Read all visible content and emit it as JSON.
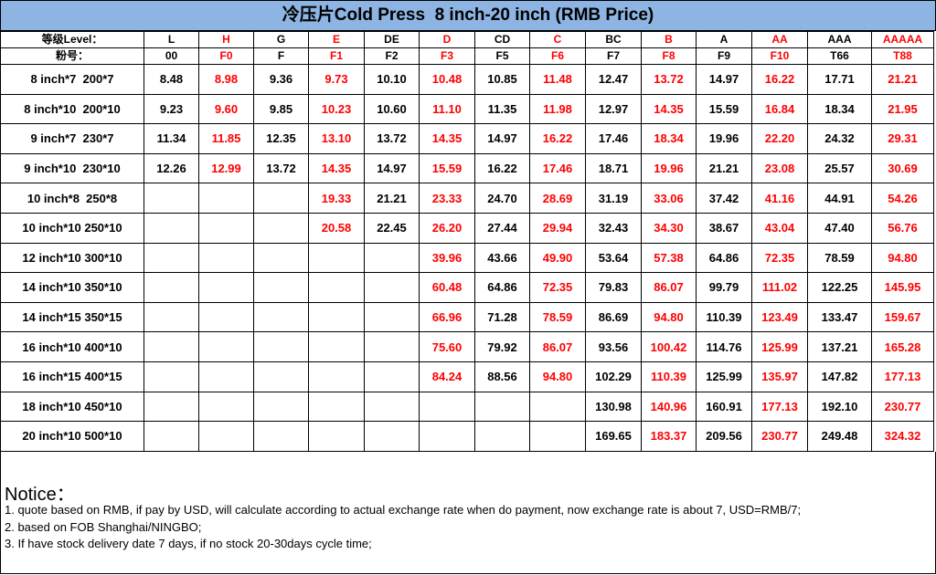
{
  "title": "冷压片Cold Press  8 inch-20 inch (RMB Price)",
  "table": {
    "level_label": "等级Level：",
    "levels": [
      "L",
      "H",
      "G",
      "E",
      "DE",
      "D",
      "CD",
      "C",
      "BC",
      "B",
      "A",
      "AA",
      "AAA",
      "AAAAA"
    ],
    "powder_label": "粉号：",
    "powders": [
      "00",
      "F0",
      "F",
      "F1",
      "F2",
      "F3",
      "F5",
      "F6",
      "F7",
      "F8",
      "F9",
      "F10",
      "T66",
      "T88"
    ],
    "rows": [
      {
        "size": "8 inch*7  200*7",
        "prices": [
          "8.48",
          "8.98",
          "9.36",
          "9.73",
          "10.10",
          "10.48",
          "10.85",
          "11.48",
          "12.47",
          "13.72",
          "14.97",
          "16.22",
          "17.71",
          "21.21"
        ]
      },
      {
        "size": "8 inch*10  200*10",
        "prices": [
          "9.23",
          "9.60",
          "9.85",
          "10.23",
          "10.60",
          "11.10",
          "11.35",
          "11.98",
          "12.97",
          "14.35",
          "15.59",
          "16.84",
          "18.34",
          "21.95"
        ]
      },
      {
        "size": "9 inch*7  230*7",
        "prices": [
          "11.34",
          "11.85",
          "12.35",
          "13.10",
          "13.72",
          "14.35",
          "14.97",
          "16.22",
          "17.46",
          "18.34",
          "19.96",
          "22.20",
          "24.32",
          "29.31"
        ]
      },
      {
        "size": "9 inch*10  230*10",
        "prices": [
          "12.26",
          "12.99",
          "13.72",
          "14.35",
          "14.97",
          "15.59",
          "16.22",
          "17.46",
          "18.71",
          "19.96",
          "21.21",
          "23.08",
          "25.57",
          "30.69"
        ]
      },
      {
        "size": "10 inch*8  250*8",
        "prices": [
          null,
          null,
          null,
          "19.33",
          "21.21",
          "23.33",
          "24.70",
          "28.69",
          "31.19",
          "33.06",
          "37.42",
          "41.16",
          "44.91",
          "54.26"
        ]
      },
      {
        "size": "10 inch*10 250*10",
        "prices": [
          null,
          null,
          null,
          "20.58",
          "22.45",
          "26.20",
          "27.44",
          "29.94",
          "32.43",
          "34.30",
          "38.67",
          "43.04",
          "47.40",
          "56.76"
        ]
      },
      {
        "size": "12 inch*10 300*10",
        "prices": [
          null,
          null,
          null,
          null,
          null,
          "39.96",
          "43.66",
          "49.90",
          "53.64",
          "57.38",
          "64.86",
          "72.35",
          "78.59",
          "94.80"
        ]
      },
      {
        "size": "14 inch*10 350*10",
        "prices": [
          null,
          null,
          null,
          null,
          null,
          "60.48",
          "64.86",
          "72.35",
          "79.83",
          "86.07",
          "99.79",
          "111.02",
          "122.25",
          "145.95"
        ]
      },
      {
        "size": "14 inch*15 350*15",
        "prices": [
          null,
          null,
          null,
          null,
          null,
          "66.96",
          "71.28",
          "78.59",
          "86.69",
          "94.80",
          "110.39",
          "123.49",
          "133.47",
          "159.67"
        ]
      },
      {
        "size": "16 inch*10 400*10",
        "prices": [
          null,
          null,
          null,
          null,
          null,
          "75.60",
          "79.92",
          "86.07",
          "93.56",
          "100.42",
          "114.76",
          "125.99",
          "137.21",
          "165.28"
        ]
      },
      {
        "size": "16 inch*15 400*15",
        "prices": [
          null,
          null,
          null,
          null,
          null,
          "84.24",
          "88.56",
          "94.80",
          "102.29",
          "110.39",
          "125.99",
          "135.97",
          "147.82",
          "177.13"
        ]
      },
      {
        "size": "18 inch*10 450*10",
        "prices": [
          null,
          null,
          null,
          null,
          null,
          null,
          null,
          null,
          "130.98",
          "140.96",
          "160.91",
          "177.13",
          "192.10",
          "230.77"
        ]
      },
      {
        "size": "20 inch*10 500*10",
        "prices": [
          null,
          null,
          null,
          null,
          null,
          null,
          null,
          null,
          "169.65",
          "183.37",
          "209.56",
          "230.77",
          "249.48",
          "324.32"
        ]
      }
    ]
  },
  "notice": {
    "heading": "Notice：",
    "lines": [
      "1. quote based on RMB, if pay by USD, will calculate according to actual exchange rate when do payment, now exchange rate is about 7, USD=RMB/7;",
      "2. based on FOB Shanghai/NINGBO;",
      "3. If have stock delivery date 7 days, if no stock 20-30days cycle time;"
    ]
  }
}
